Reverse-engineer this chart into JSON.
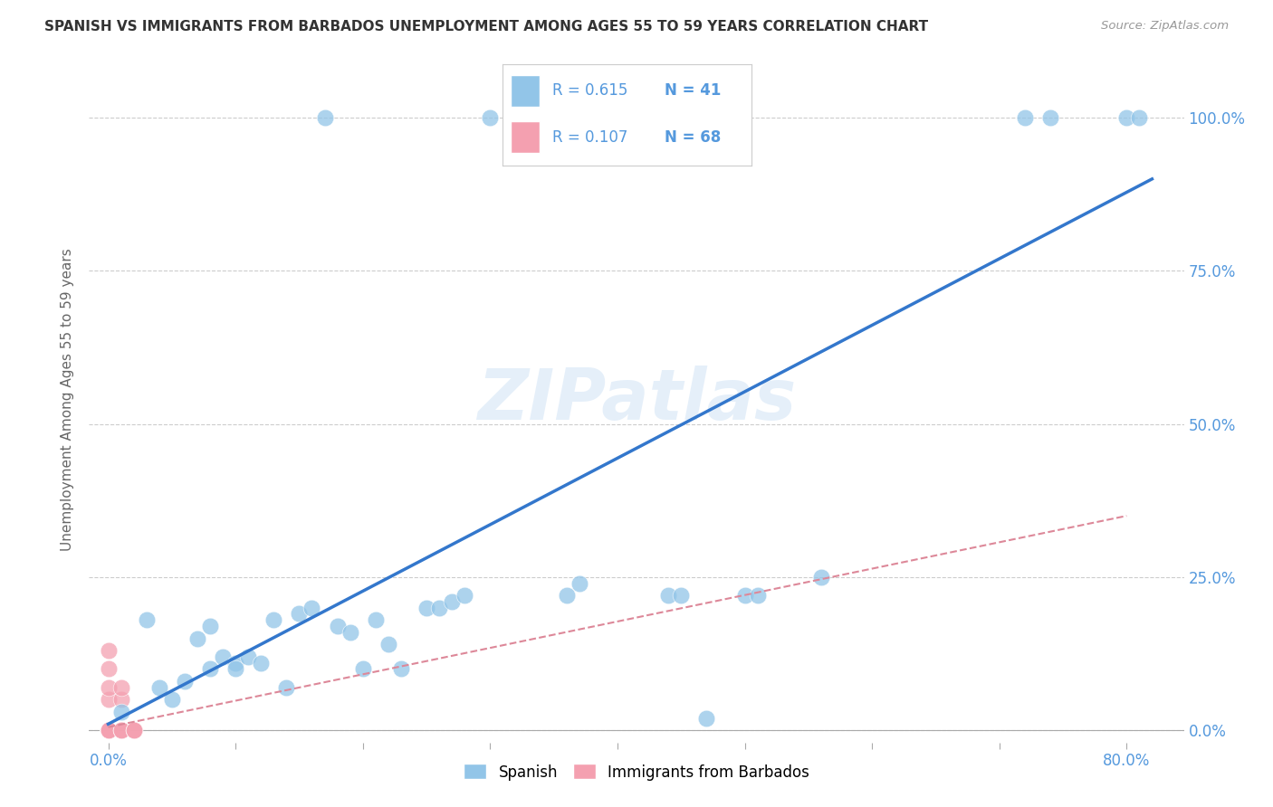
{
  "title": "SPANISH VS IMMIGRANTS FROM BARBADOS UNEMPLOYMENT AMONG AGES 55 TO 59 YEARS CORRELATION CHART",
  "source": "Source: ZipAtlas.com",
  "ylabel": "Unemployment Among Ages 55 to 59 years",
  "ytick_values": [
    0.0,
    0.25,
    0.5,
    0.75,
    1.0
  ],
  "ytick_labels": [
    "0.0%",
    "25.0%",
    "50.0%",
    "75.0%",
    "100.0%"
  ],
  "xtick_values": [
    0.0,
    0.1,
    0.2,
    0.3,
    0.4,
    0.5,
    0.6,
    0.7,
    0.8
  ],
  "xlim": [
    -0.015,
    0.845
  ],
  "ylim": [
    -0.02,
    1.1
  ],
  "legend1_R": "0.615",
  "legend1_N": "41",
  "legend2_R": "0.107",
  "legend2_N": "68",
  "blue_color": "#92C5E8",
  "pink_color": "#F4A0B0",
  "line_blue": "#3377CC",
  "line_pink": "#DD8899",
  "grid_color": "#cccccc",
  "title_color": "#333333",
  "axis_tick_color": "#5599DD",
  "ylabel_color": "#666666",
  "watermark_color": "#AACCEE",
  "blue_line_x0": 0.0,
  "blue_line_y0": 0.01,
  "blue_line_x1": 0.82,
  "blue_line_y1": 0.9,
  "pink_line_x0": 0.0,
  "pink_line_y0": 0.005,
  "pink_line_x1": 0.8,
  "pink_line_y1": 0.35,
  "spanish_x": [
    0.17,
    0.3,
    0.72,
    0.74,
    0.8,
    0.81,
    0.03,
    0.04,
    0.05,
    0.06,
    0.07,
    0.08,
    0.08,
    0.09,
    0.1,
    0.1,
    0.11,
    0.12,
    0.13,
    0.14,
    0.15,
    0.16,
    0.18,
    0.19,
    0.2,
    0.21,
    0.22,
    0.23,
    0.25,
    0.26,
    0.27,
    0.28,
    0.36,
    0.37,
    0.44,
    0.45,
    0.5,
    0.51,
    0.56,
    0.47,
    0.01
  ],
  "spanish_y": [
    1.0,
    1.0,
    1.0,
    1.0,
    1.0,
    1.0,
    0.18,
    0.07,
    0.05,
    0.08,
    0.15,
    0.17,
    0.1,
    0.12,
    0.11,
    0.1,
    0.12,
    0.11,
    0.18,
    0.07,
    0.19,
    0.2,
    0.17,
    0.16,
    0.1,
    0.18,
    0.14,
    0.1,
    0.2,
    0.2,
    0.21,
    0.22,
    0.22,
    0.24,
    0.22,
    0.22,
    0.22,
    0.22,
    0.25,
    0.02,
    0.03
  ],
  "barbados_x": [
    0.0,
    0.0,
    0.0,
    0.0,
    0.0,
    0.0,
    0.0,
    0.0,
    0.0,
    0.0,
    0.0,
    0.0,
    0.0,
    0.0,
    0.0,
    0.0,
    0.0,
    0.0,
    0.0,
    0.0,
    0.0,
    0.0,
    0.0,
    0.0,
    0.0,
    0.0,
    0.0,
    0.0,
    0.0,
    0.0,
    0.0,
    0.0,
    0.0,
    0.0,
    0.0,
    0.0,
    0.0,
    0.0,
    0.0,
    0.0,
    0.0,
    0.0,
    0.0,
    0.0,
    0.0,
    0.0,
    0.0,
    0.0,
    0.0,
    0.0,
    0.0,
    0.0,
    0.0,
    0.0,
    0.0,
    0.0,
    0.0,
    0.0,
    0.0,
    0.0,
    0.01,
    0.01,
    0.01,
    0.01,
    0.01,
    0.02,
    0.02,
    0.02
  ],
  "barbados_y": [
    0.0,
    0.0,
    0.0,
    0.0,
    0.0,
    0.0,
    0.0,
    0.0,
    0.0,
    0.0,
    0.0,
    0.0,
    0.0,
    0.0,
    0.0,
    0.0,
    0.0,
    0.0,
    0.0,
    0.0,
    0.0,
    0.0,
    0.0,
    0.0,
    0.0,
    0.0,
    0.0,
    0.0,
    0.0,
    0.0,
    0.0,
    0.0,
    0.0,
    0.0,
    0.0,
    0.0,
    0.0,
    0.0,
    0.0,
    0.0,
    0.05,
    0.07,
    0.1,
    0.13,
    0.0,
    0.0,
    0.0,
    0.0,
    0.0,
    0.0,
    0.0,
    0.0,
    0.0,
    0.0,
    0.0,
    0.0,
    0.0,
    0.0,
    0.0,
    0.0,
    0.05,
    0.07,
    0.0,
    0.0,
    0.0,
    0.0,
    0.0,
    0.0
  ]
}
